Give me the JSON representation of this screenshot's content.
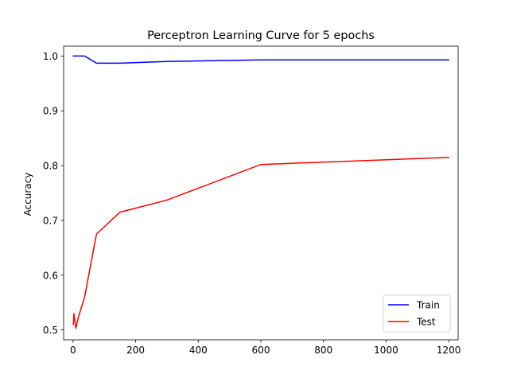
{
  "chart_data": {
    "type": "line",
    "title": "Perceptron Learning Curve for 5 epochs",
    "xlabel": "",
    "ylabel": "Accuracy",
    "xlim": [
      -30,
      1230
    ],
    "ylim": [
      0.482,
      1.018
    ],
    "xticks": [
      0,
      200,
      400,
      600,
      800,
      1000,
      1200
    ],
    "yticks": [
      0.5,
      0.6,
      0.7,
      0.8,
      0.9,
      1.0
    ],
    "xtick_labels": [
      "0",
      "200",
      "400",
      "600",
      "800",
      "1000",
      "1200"
    ],
    "ytick_labels": [
      "0.5",
      "0.6",
      "0.7",
      "0.8",
      "0.9",
      "1.0"
    ],
    "grid": false,
    "legend_position": "bottom-right",
    "series": [
      {
        "name": "Train",
        "color": "#0000ff",
        "x": [
          1,
          3,
          9,
          18,
          37,
          75,
          150,
          300,
          600,
          1200
        ],
        "y": [
          1.0,
          1.0,
          1.0,
          1.0,
          1.0,
          0.987,
          0.987,
          0.99,
          0.993,
          0.993
        ]
      },
      {
        "name": "Test",
        "color": "#ff0000",
        "x": [
          1,
          3,
          9,
          18,
          37,
          75,
          150,
          300,
          600,
          1200
        ],
        "y": [
          0.51,
          0.53,
          0.503,
          0.525,
          0.56,
          0.675,
          0.715,
          0.737,
          0.802,
          0.815
        ]
      }
    ]
  }
}
